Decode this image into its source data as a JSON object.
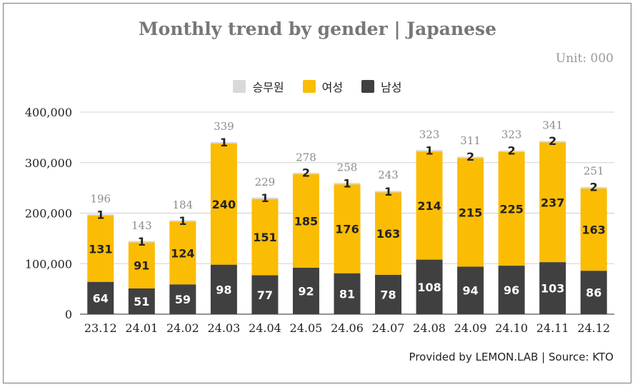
{
  "chart_data": {
    "type": "bar",
    "stacked": true,
    "title": "Monthly trend by gender | Japanese",
    "unit": "Unit: 000",
    "source": "Provided by LEMON.LAB | Source: KTO",
    "categories": [
      "23.12",
      "24.01",
      "24.02",
      "24.03",
      "24.04",
      "24.05",
      "24.06",
      "24.07",
      "24.08",
      "24.09",
      "24.10",
      "24.11",
      "24.12"
    ],
    "series": [
      {
        "name": "남성",
        "color": "#404040",
        "label_color": "#ffffff",
        "values": [
          64,
          51,
          59,
          98,
          77,
          92,
          81,
          78,
          108,
          94,
          96,
          103,
          86
        ]
      },
      {
        "name": "여성",
        "color": "#fbbc04",
        "label_color": "#222222",
        "values": [
          131,
          91,
          124,
          240,
          151,
          185,
          176,
          163,
          214,
          215,
          225,
          237,
          163
        ]
      },
      {
        "name": "승무원",
        "color": "#d9d9d9",
        "label_color": "#222222",
        "values": [
          1,
          1,
          1,
          1,
          1,
          2,
          1,
          1,
          1,
          2,
          2,
          2,
          2
        ]
      }
    ],
    "totals": [
      196,
      143,
      184,
      339,
      229,
      278,
      258,
      243,
      323,
      311,
      323,
      341,
      251
    ],
    "legend_order": [
      "승무원",
      "여성",
      "남성"
    ],
    "legend_position": "top",
    "ylim": [
      0,
      400000
    ],
    "yticks": [
      0,
      100000,
      200000,
      300000,
      400000
    ],
    "ytick_labels": [
      "0",
      "100,000",
      "200,000",
      "300,000",
      "400,000"
    ],
    "grid": true
  }
}
